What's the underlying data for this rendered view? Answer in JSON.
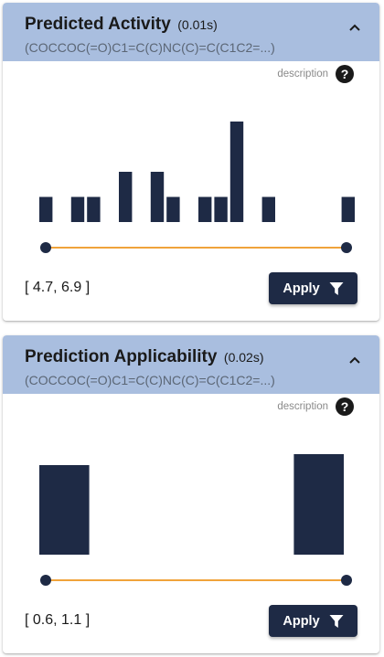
{
  "colors": {
    "header_bg": "#a9bedf",
    "bar": "#1e2a45",
    "slider_track": "#f0a33b",
    "button_bg": "#1e2a45"
  },
  "panels": [
    {
      "title": "Predicted Activity",
      "timing": "(0.01s)",
      "smiles": "(COCCOC(=O)C1=C(C)NC(C)=C(C1C2=...)",
      "description_label": "description",
      "help_icon": "question-mark-icon",
      "collapse_icon": "chevron-up-icon",
      "range_text": "[ 4.7, 6.9 ]",
      "apply_label": "Apply",
      "apply_icon": "filter-icon",
      "chart_data": {
        "type": "bar",
        "title": "",
        "range": [
          4.7,
          6.9
        ],
        "values": [
          1,
          0,
          1,
          1,
          0,
          2,
          0,
          2,
          1,
          0,
          1,
          1,
          4,
          0,
          1,
          0,
          0,
          0,
          0,
          1
        ],
        "slider_values": [
          4.7,
          6.9
        ]
      }
    },
    {
      "title": "Prediction Applicability",
      "timing": "(0.02s)",
      "smiles": "(COCCOC(=O)C1=C(C)NC(C)=C(C1C2=...)",
      "description_label": "description",
      "help_icon": "question-mark-icon",
      "collapse_icon": "chevron-up-icon",
      "range_text": "[ 0.6, 1.1 ]",
      "apply_label": "Apply",
      "apply_icon": "filter-icon",
      "chart_data": {
        "type": "bar",
        "title": "",
        "range": [
          0.6,
          1.1
        ],
        "values": [
          98,
          0,
          0,
          0,
          110
        ],
        "slider_values": [
          0.6,
          1.1
        ]
      }
    }
  ]
}
